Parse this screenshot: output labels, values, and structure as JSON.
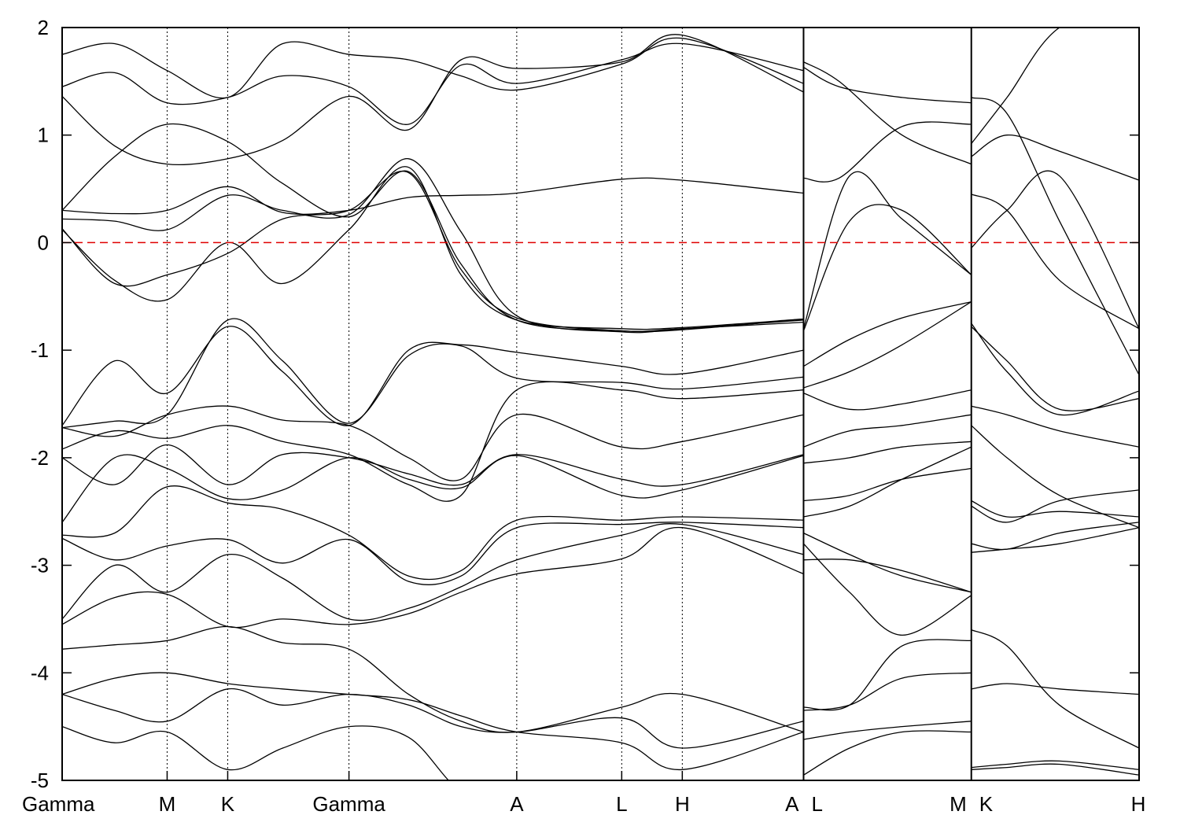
{
  "chart_data": {
    "type": "line",
    "title": "",
    "xlabel": "",
    "ylabel": "",
    "ylim": [
      -5,
      2
    ],
    "yticks": [
      "2",
      "1",
      "0",
      "-1",
      "-2",
      "-3",
      "-4",
      "-5"
    ],
    "grid": false,
    "fermi_level": 0,
    "fermi_line_color": "#e00000",
    "kpath": [
      {
        "label": "Gamma",
        "pos": 0.0
      },
      {
        "label": "M",
        "pos": 1.0
      },
      {
        "label": "K",
        "pos": 1.577
      },
      {
        "label": "Gamma",
        "pos": 2.732
      },
      {
        "label": "A",
        "pos": 4.33
      },
      {
        "label": "L",
        "pos": 5.33
      },
      {
        "label": "H",
        "pos": 5.907
      },
      {
        "label": "A",
        "pos": 7.062
      },
      {
        "label": "L",
        "pos": 7.062
      },
      {
        "label": "M",
        "pos": 8.66
      },
      {
        "label": "K",
        "pos": 8.66
      },
      {
        "label": "H",
        "pos": 10.258
      }
    ],
    "path_breaks": [
      7.062,
      8.66
    ],
    "series": [
      {
        "x": [
          0,
          0.5,
          1.0,
          1.577,
          2.1,
          2.732,
          3.3,
          3.8,
          4.33,
          5.33,
          5.907,
          7.062
        ],
        "values": [
          0.12,
          -0.35,
          -0.53,
          0.0,
          -0.38,
          0.12,
          0.7,
          -0.3,
          -0.72,
          -0.8,
          -0.79,
          -0.71
        ]
      },
      {
        "x": [
          0,
          0.5,
          1.0,
          1.577,
          2.1,
          2.732,
          3.3,
          3.8,
          4.33,
          5.33,
          5.907,
          7.062
        ],
        "values": [
          0.13,
          -0.38,
          -0.3,
          -0.1,
          0.22,
          0.3,
          0.65,
          -0.25,
          -0.7,
          -0.82,
          -0.8,
          -0.74
        ]
      },
      {
        "x": [
          0,
          0.5,
          1.0,
          1.577,
          2.1,
          2.732,
          3.3,
          3.8,
          4.33,
          5.33,
          5.907,
          7.062
        ],
        "values": [
          0.3,
          0.27,
          0.3,
          0.52,
          0.28,
          0.3,
          0.42,
          0.44,
          0.46,
          0.59,
          0.58,
          0.46
        ]
      },
      {
        "x": [
          0,
          0.5,
          1.0,
          1.577,
          2.1,
          2.732,
          3.3,
          3.8,
          4.33,
          5.33,
          5.907,
          7.062
        ],
        "values": [
          0.22,
          0.2,
          0.12,
          0.44,
          0.3,
          0.26,
          0.78,
          0.1,
          -0.68,
          -0.83,
          -0.8,
          -0.72
        ]
      },
      {
        "x": [
          0,
          0.5,
          1.0,
          1.577,
          2.1,
          2.732,
          3.3,
          3.8,
          4.33,
          5.33,
          5.907,
          7.062
        ],
        "values": [
          0.3,
          0.8,
          1.1,
          0.94,
          0.55,
          0.24,
          0.66,
          -0.2,
          -0.72,
          -0.82,
          -0.81,
          -0.71
        ]
      },
      {
        "x": [
          0,
          0.5,
          1.0,
          1.577,
          2.1,
          2.732,
          3.3,
          3.8,
          4.33,
          5.33,
          5.907,
          7.062
        ],
        "values": [
          1.36,
          0.9,
          0.73,
          0.78,
          0.95,
          1.36,
          1.05,
          1.7,
          1.62,
          1.68,
          1.93,
          1.4
        ]
      },
      {
        "x": [
          0,
          0.5,
          1.0,
          1.577,
          2.1,
          2.732,
          3.3,
          3.8,
          4.33,
          5.33,
          5.907,
          7.062
        ],
        "values": [
          1.45,
          1.58,
          1.3,
          1.35,
          1.55,
          1.45,
          1.1,
          1.65,
          1.48,
          1.7,
          1.85,
          1.6
        ]
      },
      {
        "x": [
          0,
          0.5,
          1.0,
          1.577,
          2.1,
          2.732,
          3.3,
          3.8,
          4.33,
          5.33,
          5.907,
          7.062
        ],
        "values": [
          1.75,
          1.85,
          1.6,
          1.35,
          1.85,
          1.75,
          1.7,
          1.55,
          1.42,
          1.66,
          1.9,
          1.48
        ]
      },
      {
        "x": [
          0,
          0.5,
          1.0,
          1.577,
          2.1,
          2.732,
          3.3,
          3.8,
          4.33,
          5.33,
          5.907,
          7.062
        ],
        "values": [
          -1.7,
          -1.1,
          -1.4,
          -0.78,
          -1.2,
          -1.7,
          -1.0,
          -0.95,
          -1.02,
          -1.15,
          -1.22,
          -1.0
        ]
      },
      {
        "x": [
          0,
          0.5,
          1.0,
          1.577,
          2.1,
          2.732,
          3.3,
          3.8,
          4.33,
          5.33,
          5.907,
          7.062
        ],
        "values": [
          -1.72,
          -1.66,
          -1.6,
          -0.72,
          -1.1,
          -1.68,
          -1.05,
          -0.96,
          -1.26,
          -1.3,
          -1.36,
          -1.25
        ]
      },
      {
        "x": [
          0,
          0.5,
          1.0,
          1.577,
          2.1,
          2.732,
          3.3,
          3.8,
          4.33,
          5.33,
          5.907,
          7.062
        ],
        "values": [
          -1.72,
          -1.8,
          -1.6,
          -1.52,
          -1.65,
          -1.7,
          -2.0,
          -2.2,
          -1.6,
          -1.9,
          -1.85,
          -1.6
        ]
      },
      {
        "x": [
          0,
          0.5,
          1.0,
          1.577,
          2.1,
          2.732,
          3.3,
          3.8,
          4.33,
          5.33,
          5.907,
          7.062
        ],
        "values": [
          -1.92,
          -1.75,
          -1.82,
          -1.7,
          -1.85,
          -1.97,
          -2.25,
          -2.35,
          -1.37,
          -1.37,
          -1.45,
          -1.37
        ]
      },
      {
        "x": [
          0,
          0.5,
          1.0,
          1.577,
          2.1,
          2.732,
          3.3,
          3.8,
          4.33,
          5.33,
          5.907,
          7.062
        ],
        "values": [
          -2.0,
          -2.25,
          -1.88,
          -2.25,
          -1.97,
          -2.0,
          -2.15,
          -2.25,
          -1.97,
          -2.2,
          -2.25,
          -1.97
        ]
      },
      {
        "x": [
          0,
          0.5,
          1.0,
          1.577,
          2.1,
          2.732,
          3.3,
          3.8,
          4.33,
          5.33,
          5.907,
          7.062
        ],
        "values": [
          -2.6,
          -2.0,
          -2.1,
          -2.38,
          -2.3,
          -2.0,
          -2.2,
          -2.28,
          -1.98,
          -2.35,
          -2.3,
          -1.98
        ]
      },
      {
        "x": [
          0,
          0.5,
          1.0,
          1.577,
          2.1,
          2.732,
          3.3,
          3.8,
          4.33,
          5.33,
          5.907,
          7.062
        ],
        "values": [
          -2.72,
          -2.7,
          -2.27,
          -2.42,
          -2.48,
          -2.72,
          -3.1,
          -3.05,
          -2.58,
          -2.58,
          -2.55,
          -2.58
        ]
      },
      {
        "x": [
          0,
          0.5,
          1.0,
          1.577,
          2.1,
          2.732,
          3.3,
          3.8,
          4.33,
          5.33,
          5.907,
          7.062
        ],
        "values": [
          -2.75,
          -2.95,
          -2.82,
          -2.76,
          -2.98,
          -2.76,
          -3.15,
          -3.1,
          -2.65,
          -2.62,
          -2.6,
          -2.65
        ]
      },
      {
        "x": [
          0,
          0.5,
          1.0,
          1.577,
          2.1,
          2.732,
          3.3,
          3.8,
          4.33,
          5.33,
          5.907,
          7.062
        ],
        "values": [
          -3.5,
          -3.0,
          -3.25,
          -2.9,
          -3.12,
          -3.5,
          -3.4,
          -3.2,
          -2.95,
          -2.72,
          -2.62,
          -2.9
        ]
      },
      {
        "x": [
          0,
          0.5,
          1.0,
          1.577,
          2.1,
          2.732,
          3.3,
          3.8,
          4.33,
          5.33,
          5.907,
          7.062
        ],
        "values": [
          -3.55,
          -3.3,
          -3.27,
          -3.57,
          -3.5,
          -3.55,
          -3.45,
          -3.25,
          -3.08,
          -2.94,
          -2.65,
          -3.08
        ]
      },
      {
        "x": [
          0,
          0.5,
          1.0,
          1.577,
          2.1,
          2.732,
          3.3,
          3.8,
          4.33,
          5.33,
          5.907,
          7.062
        ],
        "values": [
          -3.78,
          -3.74,
          -3.7,
          -3.57,
          -3.72,
          -3.78,
          -4.2,
          -4.45,
          -4.55,
          -4.32,
          -4.2,
          -4.55
        ]
      },
      {
        "x": [
          0,
          0.5,
          1.0,
          1.577,
          2.1,
          2.732,
          3.3,
          3.8,
          4.33,
          5.33,
          5.907,
          7.062
        ],
        "values": [
          -4.2,
          -4.05,
          -4.0,
          -4.1,
          -4.15,
          -4.2,
          -4.25,
          -4.4,
          -4.55,
          -4.65,
          -4.9,
          -4.55
        ]
      },
      {
        "x": [
          0,
          0.5,
          1.0,
          1.577,
          2.1,
          2.732,
          3.3,
          3.8,
          4.33,
          5.33,
          5.907,
          7.062
        ],
        "values": [
          -4.2,
          -4.35,
          -4.45,
          -4.15,
          -4.3,
          -4.2,
          -4.3,
          -4.5,
          -4.55,
          -4.42,
          -4.7,
          -4.45
        ]
      },
      {
        "x": [
          0,
          0.5,
          1.0,
          1.577,
          2.1,
          2.732,
          3.3,
          3.8,
          4.33,
          5.33,
          5.907,
          7.062
        ],
        "values": [
          -4.5,
          -4.65,
          -4.55,
          -4.9,
          -4.7,
          -4.5,
          -4.6,
          -5.1,
          -5.2,
          -5.2,
          -5.2,
          -5.2
        ]
      },
      {
        "x": [
          7.062,
          7.5,
          8.0,
          8.66
        ],
        "values": [
          -0.82,
          0.2,
          0.3,
          -0.3
        ]
      },
      {
        "x": [
          7.062,
          7.5,
          8.0,
          8.66
        ],
        "values": [
          -0.8,
          0.62,
          0.22,
          -0.3
        ]
      },
      {
        "x": [
          7.062,
          7.4,
          8.0,
          8.66
        ],
        "values": [
          0.6,
          0.6,
          1.08,
          1.1
        ]
      },
      {
        "x": [
          7.062,
          7.4,
          8.0,
          8.66
        ],
        "values": [
          1.68,
          1.5,
          1.0,
          0.73
        ]
      },
      {
        "x": [
          7.062,
          7.4,
          8.0,
          8.66
        ],
        "values": [
          1.63,
          1.45,
          1.35,
          1.3
        ]
      },
      {
        "x": [
          7.062,
          7.5,
          8.0,
          8.66
        ],
        "values": [
          -1.15,
          -0.9,
          -0.7,
          -0.55
        ]
      },
      {
        "x": [
          7.062,
          7.5,
          8.0,
          8.66
        ],
        "values": [
          -1.35,
          -1.2,
          -0.95,
          -0.55
        ]
      },
      {
        "x": [
          7.062,
          7.5,
          8.0,
          8.66
        ],
        "values": [
          -1.4,
          -1.55,
          -1.5,
          -1.37
        ]
      },
      {
        "x": [
          7.062,
          7.5,
          8.0,
          8.66
        ],
        "values": [
          -1.9,
          -1.75,
          -1.7,
          -1.6
        ]
      },
      {
        "x": [
          7.062,
          7.5,
          8.0,
          8.66
        ],
        "values": [
          -2.05,
          -2.0,
          -1.9,
          -1.85
        ]
      },
      {
        "x": [
          7.062,
          7.5,
          8.0,
          8.66
        ],
        "values": [
          -2.4,
          -2.35,
          -2.2,
          -2.1
        ]
      },
      {
        "x": [
          7.062,
          7.5,
          8.0,
          8.66
        ],
        "values": [
          -2.55,
          -2.45,
          -2.2,
          -1.9
        ]
      },
      {
        "x": [
          7.062,
          7.5,
          8.0,
          8.66
        ],
        "values": [
          -2.7,
          -2.9,
          -3.1,
          -3.25
        ]
      },
      {
        "x": [
          7.062,
          7.5,
          8.0,
          8.66
        ],
        "values": [
          -2.95,
          -2.95,
          -3.05,
          -3.25
        ]
      },
      {
        "x": [
          7.062,
          7.5,
          8.0,
          8.66
        ],
        "values": [
          -2.8,
          -3.25,
          -3.65,
          -3.28
        ]
      },
      {
        "x": [
          7.062,
          7.5,
          8.0,
          8.66
        ],
        "values": [
          -4.32,
          -4.3,
          -3.75,
          -3.7
        ]
      },
      {
        "x": [
          7.062,
          7.5,
          8.0,
          8.66
        ],
        "values": [
          -4.35,
          -4.3,
          -4.05,
          -4.0
        ]
      },
      {
        "x": [
          7.062,
          7.5,
          8.0,
          8.66
        ],
        "values": [
          -4.62,
          -4.55,
          -4.5,
          -4.45
        ]
      },
      {
        "x": [
          7.062,
          7.5,
          8.0,
          8.66
        ],
        "values": [
          -4.95,
          -4.7,
          -4.55,
          -4.55
        ]
      },
      {
        "x": [
          8.66,
          9.0,
          9.5,
          10.258
        ],
        "values": [
          -0.05,
          0.3,
          0.62,
          -0.8
        ]
      },
      {
        "x": [
          8.66,
          9.0,
          9.5,
          10.258
        ],
        "values": [
          0.45,
          0.3,
          -0.35,
          -0.8
        ]
      },
      {
        "x": [
          8.66,
          9.0,
          9.5,
          10.258
        ],
        "values": [
          0.8,
          1.0,
          0.85,
          0.58
        ]
      },
      {
        "x": [
          8.66,
          9.0,
          9.5,
          10.258
        ],
        "values": [
          0.92,
          1.35,
          2.0,
          2.2
        ]
      },
      {
        "x": [
          8.66,
          9.0,
          9.5,
          10.258
        ],
        "values": [
          1.35,
          1.2,
          0.2,
          -1.23
        ]
      },
      {
        "x": [
          8.66,
          9.0,
          9.5,
          10.258
        ],
        "values": [
          -0.78,
          -1.1,
          -1.55,
          -1.45
        ]
      },
      {
        "x": [
          8.66,
          9.0,
          9.5,
          10.258
        ],
        "values": [
          -0.75,
          -1.2,
          -1.6,
          -1.38
        ]
      },
      {
        "x": [
          8.66,
          9.0,
          9.5,
          10.258
        ],
        "values": [
          -1.52,
          -1.6,
          -1.75,
          -1.9
        ]
      },
      {
        "x": [
          8.66,
          9.0,
          9.5,
          10.258
        ],
        "values": [
          -1.7,
          -2.0,
          -2.35,
          -2.65
        ]
      },
      {
        "x": [
          8.66,
          9.0,
          9.5,
          10.258
        ],
        "values": [
          -2.4,
          -2.55,
          -2.5,
          -2.55
        ]
      },
      {
        "x": [
          8.66,
          9.0,
          9.5,
          10.258
        ],
        "values": [
          -2.45,
          -2.6,
          -2.4,
          -2.3
        ]
      },
      {
        "x": [
          8.66,
          9.0,
          9.5,
          10.258
        ],
        "values": [
          -2.88,
          -2.85,
          -2.8,
          -2.65
        ]
      },
      {
        "x": [
          8.66,
          9.0,
          9.5,
          10.258
        ],
        "values": [
          -2.8,
          -2.85,
          -2.7,
          -2.6
        ]
      },
      {
        "x": [
          8.66,
          9.0,
          9.5,
          10.258
        ],
        "values": [
          -3.6,
          -3.75,
          -4.3,
          -4.7
        ]
      },
      {
        "x": [
          8.66,
          9.0,
          9.5,
          10.258
        ],
        "values": [
          -4.15,
          -4.1,
          -4.15,
          -4.2
        ]
      },
      {
        "x": [
          8.66,
          9.0,
          9.5,
          10.258
        ],
        "values": [
          -4.88,
          -4.85,
          -4.82,
          -4.9
        ]
      },
      {
        "x": [
          8.66,
          9.0,
          9.5,
          10.258
        ],
        "values": [
          -4.9,
          -4.88,
          -4.85,
          -4.95
        ]
      }
    ]
  }
}
